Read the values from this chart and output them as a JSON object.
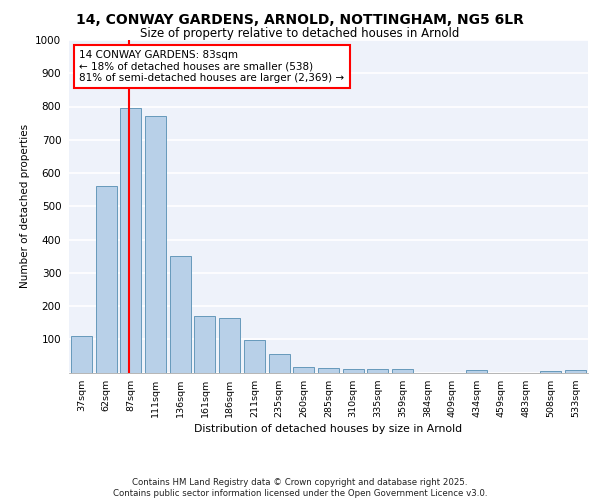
{
  "title_line1": "14, CONWAY GARDENS, ARNOLD, NOTTINGHAM, NG5 6LR",
  "title_line2": "Size of property relative to detached houses in Arnold",
  "xlabel": "Distribution of detached houses by size in Arnold",
  "ylabel": "Number of detached properties",
  "categories": [
    "37sqm",
    "62sqm",
    "87sqm",
    "111sqm",
    "136sqm",
    "161sqm",
    "186sqm",
    "211sqm",
    "235sqm",
    "260sqm",
    "285sqm",
    "310sqm",
    "335sqm",
    "359sqm",
    "384sqm",
    "409sqm",
    "434sqm",
    "459sqm",
    "483sqm",
    "508sqm",
    "533sqm"
  ],
  "values": [
    110,
    560,
    795,
    770,
    350,
    170,
    165,
    97,
    55,
    18,
    13,
    12,
    10,
    10,
    0,
    0,
    8,
    0,
    0,
    5,
    7
  ],
  "bar_color": "#b8d0e8",
  "bar_edge_color": "#6699bb",
  "vline_color": "red",
  "annotation_text": "14 CONWAY GARDENS: 83sqm\n← 18% of detached houses are smaller (538)\n81% of semi-detached houses are larger (2,369) →",
  "ylim": [
    0,
    1000
  ],
  "yticks": [
    0,
    100,
    200,
    300,
    400,
    500,
    600,
    700,
    800,
    900,
    1000
  ],
  "background_color": "#eef2fa",
  "grid_color": "white",
  "footer": "Contains HM Land Registry data © Crown copyright and database right 2025.\nContains public sector information licensed under the Open Government Licence v3.0."
}
